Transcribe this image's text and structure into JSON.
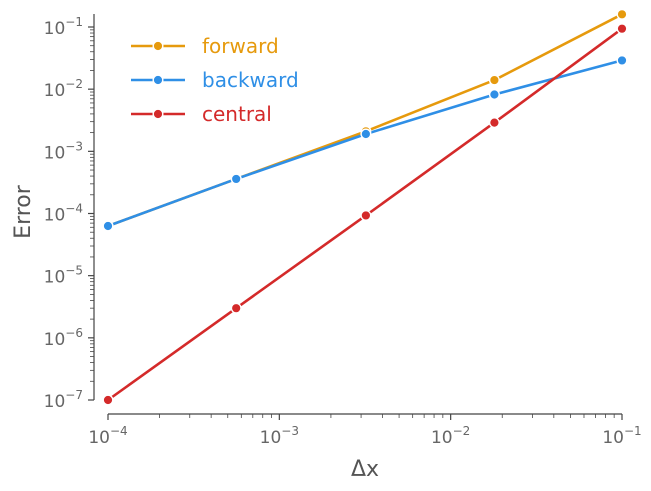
{
  "chart_data": {
    "type": "line",
    "xscale": "log",
    "yscale": "log",
    "xlim": [
      0.0001,
      0.1
    ],
    "ylim": [
      1e-07,
      0.15
    ],
    "xlabel": "Δx",
    "ylabel": "Error",
    "x_ticks": [
      {
        "value": 0.0001,
        "base": "10",
        "exp": "−4"
      },
      {
        "value": 0.001,
        "base": "10",
        "exp": "−3"
      },
      {
        "value": 0.01,
        "base": "10",
        "exp": "−2"
      },
      {
        "value": 0.1,
        "base": "10",
        "exp": "−1"
      }
    ],
    "y_ticks": [
      {
        "value": 1e-07,
        "base": "10",
        "exp": "−7"
      },
      {
        "value": 1e-06,
        "base": "10",
        "exp": "−6"
      },
      {
        "value": 1e-05,
        "base": "10",
        "exp": "−5"
      },
      {
        "value": 0.0001,
        "base": "10",
        "exp": "−4"
      },
      {
        "value": 0.001,
        "base": "10",
        "exp": "−3"
      },
      {
        "value": 0.01,
        "base": "10",
        "exp": "−2"
      },
      {
        "value": 0.1,
        "base": "10",
        "exp": "−1"
      }
    ],
    "grid": false,
    "legend_position": "top-left",
    "x": [
      0.0001,
      0.00056,
      0.0032,
      0.018,
      0.1
    ],
    "series": [
      {
        "name": "forward",
        "color": "#e69a0d",
        "values": [
          6.3e-05,
          0.00036,
          0.0021,
          0.014,
          0.16
        ]
      },
      {
        "name": "backward",
        "color": "#2f8fe6",
        "values": [
          6.3e-05,
          0.00036,
          0.0019,
          0.0082,
          0.029
        ]
      },
      {
        "name": "central",
        "color": "#d42a2a",
        "values": [
          1e-07,
          3e-06,
          9.3e-05,
          0.0029,
          0.094
        ]
      }
    ]
  }
}
